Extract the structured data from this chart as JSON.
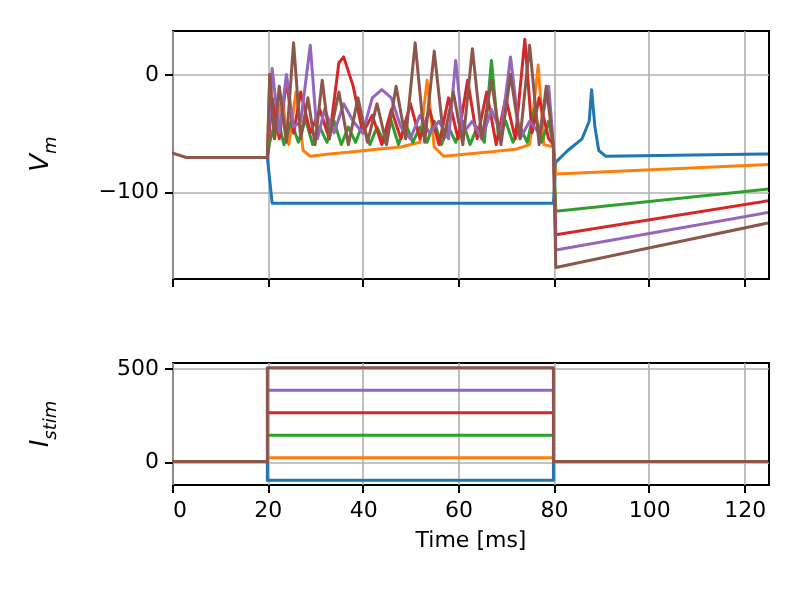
{
  "chart_data": [
    {
      "type": "line",
      "ylabel": "V$_{m}$",
      "xlim": [
        0,
        125
      ],
      "xticks": [
        0,
        20,
        40,
        60,
        80,
        100,
        120
      ],
      "ylim": [
        -174,
        38
      ],
      "yticks": [
        -100,
        0
      ],
      "grid": true,
      "tick_labels": "y",
      "series": [
        {
          "color": "#1f77b4",
          "x": [
            20,
            21,
            80,
            80.5,
            83,
            86,
            87.5,
            88,
            88.7,
            89.5,
            91,
            125
          ],
          "values": [
            -71,
            -110,
            -110,
            -75,
            -65,
            -55,
            -40,
            -13,
            -45,
            -65,
            -70,
            -68
          ]
        },
        {
          "color": "#ff7f0e",
          "x": [
            20,
            20.5,
            21.5,
            23,
            24.5,
            26,
            27.5,
            29,
            33,
            38,
            43,
            48,
            52,
            53.5,
            55,
            57,
            62,
            67,
            72,
            75,
            76.8,
            78,
            80,
            80.5,
            125
          ],
          "values": [
            -71,
            0,
            -55,
            -20,
            -60,
            -15,
            -65,
            -70,
            -68,
            -66,
            -64,
            -62,
            -58,
            -5,
            -62,
            -70,
            -68,
            -66,
            -64,
            -60,
            8,
            -60,
            -62,
            -85,
            -77
          ]
        },
        {
          "color": "#2ca02c",
          "x": [
            20,
            20.5,
            22,
            23.5,
            25,
            26.5,
            28,
            29.5,
            31,
            32.5,
            34,
            35.5,
            37,
            38.5,
            40,
            41.5,
            43,
            44.5,
            46,
            47.5,
            49,
            50.5,
            52,
            53.5,
            55,
            56.5,
            58,
            59.5,
            61,
            62.5,
            64,
            65.5,
            67,
            68.5,
            70,
            71.5,
            73,
            74.5,
            76,
            77.5,
            79,
            80,
            80.5,
            125
          ],
          "values": [
            -71,
            -58,
            -35,
            -60,
            -40,
            -58,
            -38,
            -60,
            -45,
            -58,
            -40,
            -60,
            -45,
            -58,
            -42,
            -60,
            -45,
            -58,
            -40,
            -60,
            -42,
            -58,
            -45,
            -58,
            -40,
            -60,
            -45,
            -58,
            -40,
            -60,
            -45,
            -58,
            12,
            -55,
            -40,
            -58,
            -45,
            -58,
            -30,
            -58,
            -40,
            -62,
            -117,
            -98
          ]
        },
        {
          "color": "#d62728",
          "x": [
            20,
            21,
            22.5,
            24,
            25.5,
            27,
            29,
            31,
            33,
            35,
            36,
            38,
            40,
            42,
            44,
            46,
            48,
            50,
            52,
            54,
            56,
            58,
            60,
            62,
            64,
            66,
            68,
            70,
            72,
            74,
            75.5,
            77,
            79,
            80,
            80.5,
            125
          ],
          "values": [
            -71,
            -20,
            -55,
            -5,
            -50,
            -15,
            -50,
            -30,
            -55,
            10,
            15,
            -10,
            -50,
            -35,
            -60,
            -30,
            -55,
            -25,
            -55,
            -30,
            -60,
            -20,
            -55,
            -5,
            -55,
            -15,
            -60,
            -20,
            -55,
            30,
            -50,
            -20,
            -55,
            -60,
            -137,
            -108
          ]
        },
        {
          "color": "#9467bd",
          "x": [
            20,
            21,
            22.5,
            24,
            25.5,
            27,
            29,
            30.5,
            32,
            34,
            36,
            38,
            40,
            42,
            44,
            46,
            48,
            50,
            52,
            54,
            56,
            58,
            59.5,
            61,
            63,
            65,
            67,
            69,
            71,
            73,
            75,
            77,
            79,
            80,
            80.5,
            125
          ],
          "values": [
            -71,
            5,
            -50,
            0,
            -45,
            -40,
            25,
            -55,
            -30,
            -50,
            -25,
            -40,
            -50,
            -20,
            -13,
            -20,
            -45,
            -55,
            -35,
            -50,
            -40,
            -55,
            12,
            -50,
            -40,
            -55,
            -30,
            -50,
            15,
            -55,
            -40,
            -50,
            -10,
            -60,
            -150,
            -118
          ]
        },
        {
          "color": "#8c564b",
          "x": [
            0,
            3,
            20,
            20.5,
            21.5,
            22.5,
            24,
            25.5,
            27,
            28.5,
            30,
            31.5,
            33,
            35,
            37,
            39,
            41,
            43,
            45,
            47,
            49,
            51,
            53,
            55,
            57,
            59,
            61,
            63,
            65,
            67,
            69,
            71,
            73,
            75,
            77,
            78.5,
            80,
            80.5,
            125
          ],
          "values": [
            -67,
            -71,
            -71,
            0,
            -55,
            -10,
            -58,
            27,
            -55,
            -20,
            -60,
            -5,
            -55,
            -15,
            -60,
            -20,
            -58,
            -25,
            -60,
            -10,
            -55,
            27,
            -58,
            20,
            -55,
            -15,
            -60,
            22,
            -55,
            -5,
            -60,
            0,
            -55,
            25,
            -60,
            -10,
            -62,
            -165,
            -127
          ]
        }
      ]
    },
    {
      "type": "line",
      "ylabel": "I$_{stim}$",
      "xlabel": "Time [ms]",
      "xlim": [
        0,
        125
      ],
      "xticks": [
        0,
        20,
        40,
        60,
        80,
        100,
        120
      ],
      "ylim": [
        -120,
        530
      ],
      "yticks": [
        0,
        500
      ],
      "grid": true,
      "series": [
        {
          "color": "#1f77b4",
          "x": [
            20,
            20,
            80,
            80
          ],
          "values": [
            0,
            -100,
            -100,
            0
          ]
        },
        {
          "color": "#ff7f0e",
          "x": [
            20,
            80
          ],
          "values": [
            20,
            20
          ]
        },
        {
          "color": "#2ca02c",
          "x": [
            20,
            80
          ],
          "values": [
            140,
            140
          ]
        },
        {
          "color": "#d62728",
          "x": [
            20,
            80
          ],
          "values": [
            260,
            260
          ]
        },
        {
          "color": "#9467bd",
          "x": [
            20,
            80
          ],
          "values": [
            380,
            380
          ]
        },
        {
          "color": "#8c564b",
          "x": [
            0,
            20,
            20,
            80,
            80,
            125
          ],
          "values": [
            0,
            0,
            500,
            500,
            0,
            0
          ]
        }
      ]
    }
  ]
}
